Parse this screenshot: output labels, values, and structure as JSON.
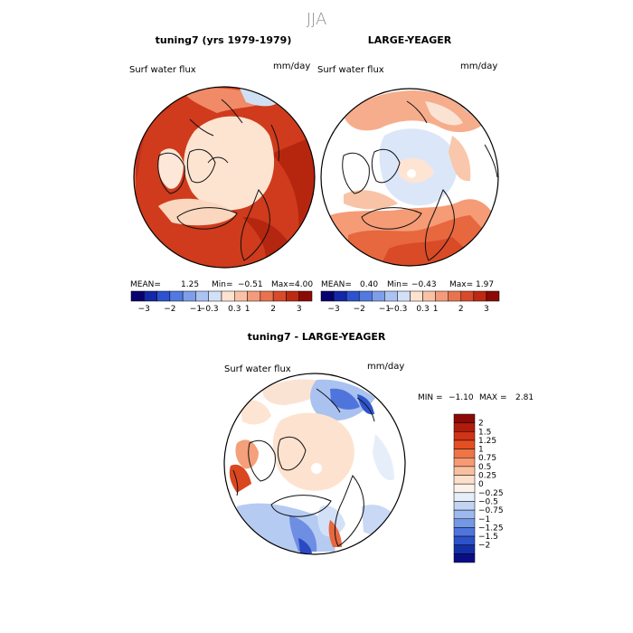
{
  "main_title": "JJA",
  "chart_data": [
    {
      "type": "heatmap",
      "title": "tuning7 (yrs 1979-1979)",
      "variable": "Surf water flux",
      "units": "mm/day",
      "stats": {
        "mean_label": "MEAN=",
        "mean": "1.25",
        "min_label": "Min=",
        "min": "−0.51",
        "max_label": "Max=",
        "max": "4.00"
      },
      "colorbar": {
        "orientation": "horizontal",
        "colors": [
          "#08006e",
          "#1427a6",
          "#2d52d0",
          "#5279e0",
          "#7e9eea",
          "#aac3f2",
          "#d3e1f8",
          "#fde3cf",
          "#f9c2a6",
          "#f39b7a",
          "#e9724f",
          "#d94a2b",
          "#bc2a14",
          "#8b0a05"
        ],
        "tick_labels": [
          "−3",
          "−2",
          "−1",
          "−0.3",
          "0.3",
          "1",
          "2",
          "3"
        ]
      }
    },
    {
      "type": "heatmap",
      "title": "LARGE-YEAGER",
      "variable": "Surf water flux",
      "units": "mm/day",
      "stats": {
        "mean_label": "MEAN=",
        "mean": "0.40",
        "min_label": "Min=",
        "min": "−0.43",
        "max_label": "Max=",
        "max": "1.97"
      },
      "colorbar": {
        "orientation": "horizontal",
        "colors": [
          "#08006e",
          "#1427a6",
          "#2d52d0",
          "#5279e0",
          "#7e9eea",
          "#aac3f2",
          "#d3e1f8",
          "#fde3cf",
          "#f9c2a6",
          "#f39b7a",
          "#e9724f",
          "#d94a2b",
          "#bc2a14",
          "#8b0a05"
        ],
        "tick_labels": [
          "−3",
          "−2",
          "−1",
          "−0.3",
          "0.3",
          "1",
          "2",
          "3"
        ]
      }
    },
    {
      "type": "heatmap",
      "title": "tuning7 - LARGE-YEAGER",
      "variable": "Surf water flux",
      "units": "mm/day",
      "stats": {
        "min_label": "MIN =",
        "min": "−1.10",
        "max_label": "MAX =",
        "max": "2.81"
      },
      "colorbar": {
        "orientation": "vertical",
        "colors": [
          "#8b0a05",
          "#b01c0c",
          "#cf3416",
          "#e44f22",
          "#ef7448",
          "#f59a73",
          "#f9c0a0",
          "#fde0cc",
          "#fdf2ea",
          "#e6eefa",
          "#c3d4f3",
          "#9db8ee",
          "#7598e6",
          "#4e75dc",
          "#2c52c9",
          "#1430a6",
          "#0b0d86"
        ],
        "tick_labels": [
          "2",
          "1.5",
          "1.25",
          "1",
          "0.75",
          "0.5",
          "0.25",
          "0",
          "−0.25",
          "−0.5",
          "−0.75",
          "−1",
          "−1.25",
          "−1.5",
          "−2"
        ]
      }
    }
  ]
}
